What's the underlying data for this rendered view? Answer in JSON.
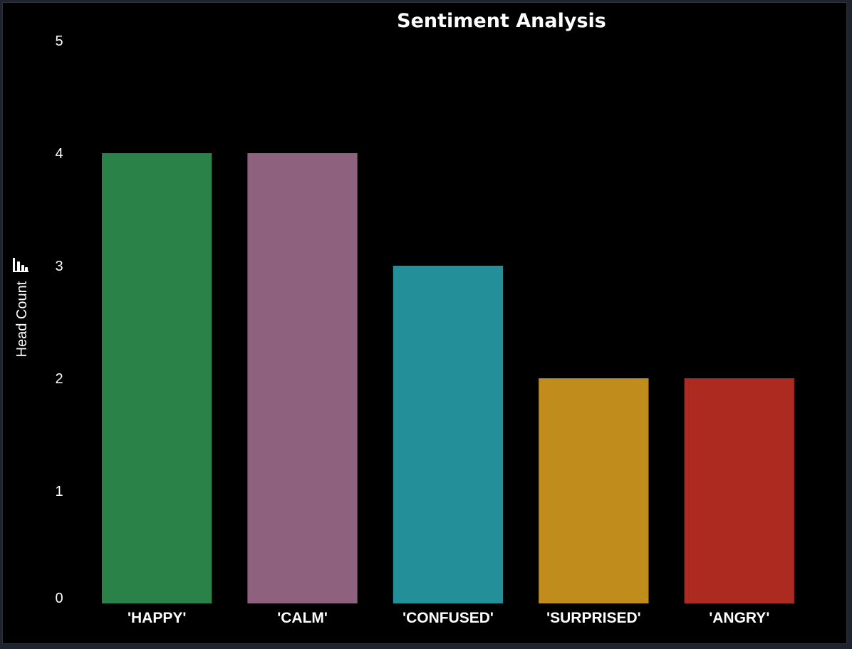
{
  "chart_data": {
    "type": "bar",
    "title": "Sentiment Analysis",
    "xlabel": "",
    "ylabel": "Head Count",
    "ylabel_icon": "bar-chart-icon",
    "categories": [
      "'HAPPY'",
      "'CALM'",
      "'CONFUSED'",
      "'SURPRISED'",
      "'ANGRY'"
    ],
    "values": [
      4,
      4,
      3,
      2,
      2
    ],
    "colors": [
      "#2a8248",
      "#8e627e",
      "#228f99",
      "#c08d1c",
      "#ad2a20"
    ],
    "ylim": [
      0,
      5
    ],
    "yticks": [
      0,
      1,
      2,
      3,
      4,
      5
    ],
    "grid": false,
    "legend": "none",
    "background": "#000000"
  }
}
